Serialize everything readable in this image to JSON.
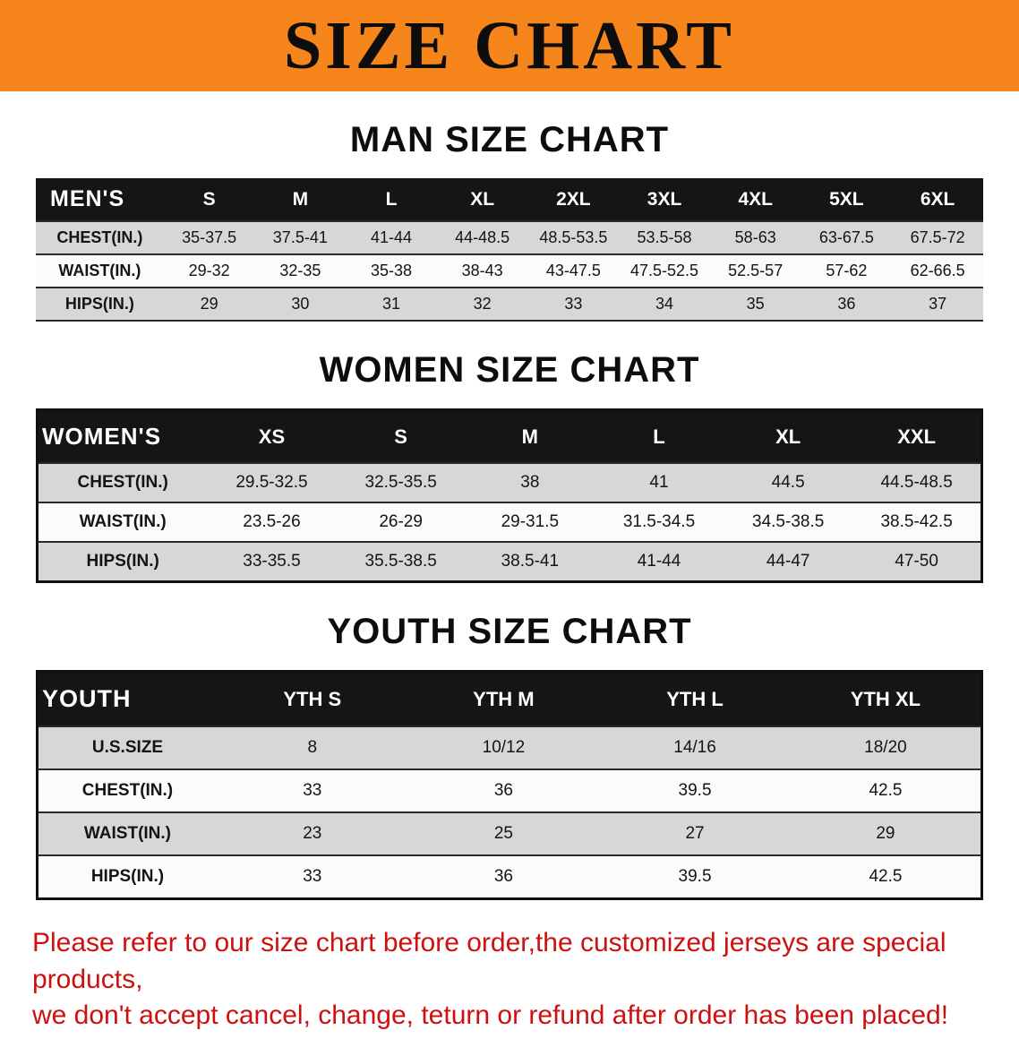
{
  "banner": {
    "title": "SIZE CHART",
    "bg_color": "#f6861c",
    "text_color": "#0d0d0d"
  },
  "men": {
    "heading": "MAN SIZE CHART",
    "table": {
      "header": [
        "MEN'S",
        "S",
        "M",
        "L",
        "XL",
        "2XL",
        "3XL",
        "4XL",
        "5XL",
        "6XL"
      ],
      "rows": [
        {
          "label": "CHEST(IN.)",
          "values": [
            "35-37.5",
            "37.5-41",
            "41-44",
            "44-48.5",
            "48.5-53.5",
            "53.5-58",
            "58-63",
            "63-67.5",
            "67.5-72"
          ]
        },
        {
          "label": "WAIST(IN.)",
          "values": [
            "29-32",
            "32-35",
            "35-38",
            "38-43",
            "43-47.5",
            "47.5-52.5",
            "52.5-57",
            "57-62",
            "62-66.5"
          ]
        },
        {
          "label": "HIPS(IN.)",
          "values": [
            "29",
            "30",
            "31",
            "32",
            "33",
            "34",
            "35",
            "36",
            "37"
          ]
        }
      ]
    }
  },
  "women": {
    "heading": "WOMEN SIZE CHART",
    "table": {
      "header": [
        "WOMEN'S",
        "XS",
        "S",
        "M",
        "L",
        "XL",
        "XXL"
      ],
      "rows": [
        {
          "label": "CHEST(IN.)",
          "values": [
            "29.5-32.5",
            "32.5-35.5",
            "38",
            "41",
            "44.5",
            "44.5-48.5"
          ]
        },
        {
          "label": "WAIST(IN.)",
          "values": [
            "23.5-26",
            "26-29",
            "29-31.5",
            "31.5-34.5",
            "34.5-38.5",
            "38.5-42.5"
          ]
        },
        {
          "label": "HIPS(IN.)",
          "values": [
            "33-35.5",
            "35.5-38.5",
            "38.5-41",
            "41-44",
            "44-47",
            "47-50"
          ]
        }
      ]
    }
  },
  "youth": {
    "heading": "YOUTH SIZE CHART",
    "table": {
      "header": [
        "YOUTH",
        "YTH S",
        "YTH M",
        "YTH L",
        "YTH XL"
      ],
      "rows": [
        {
          "label": "U.S.SIZE",
          "values": [
            "8",
            "10/12",
            "14/16",
            "18/20"
          ]
        },
        {
          "label": "CHEST(IN.)",
          "values": [
            "33",
            "36",
            "39.5",
            "42.5"
          ]
        },
        {
          "label": "WAIST(IN.)",
          "values": [
            "23",
            "25",
            "27",
            "29"
          ]
        },
        {
          "label": "HIPS(IN.)",
          "values": [
            "33",
            "36",
            "39.5",
            "42.5"
          ]
        }
      ]
    }
  },
  "footer": {
    "line1": "Please refer to our size chart before order,the customized jerseys are special products,",
    "line2": "we don't accept cancel, change, teturn or refund after order has been placed!",
    "text_color": "#cd1010"
  }
}
